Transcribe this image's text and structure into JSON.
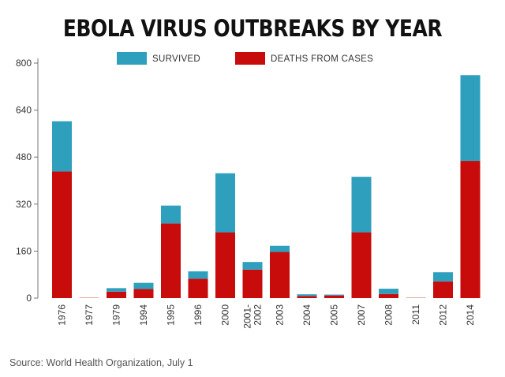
{
  "page": {
    "title": "EBOLA VIRUS OUTBREAKS BY YEAR",
    "source": "Source: World Health Organization, July 1"
  },
  "colors": {
    "survived": "#2e9fbd",
    "deaths": "#c80b0b",
    "axis": "#777777"
  },
  "chart_data": {
    "type": "bar",
    "stacked": true,
    "title": "EBOLA VIRUS OUTBREAKS BY YEAR",
    "xlabel": "",
    "ylabel": "",
    "ylim": [
      0,
      800
    ],
    "yticks": [
      0,
      160,
      320,
      480,
      640,
      800
    ],
    "grid": false,
    "legend": "top-center",
    "categories": [
      "1976",
      "1977",
      "1979",
      "1994",
      "1995",
      "1996",
      "2000",
      "2001-\n2002",
      "2003",
      "2004",
      "2005",
      "2007",
      "2008",
      "2011",
      "2012",
      "2014"
    ],
    "series": [
      {
        "name": "DEATHS FROM CASES",
        "values": [
          431,
          1,
          22,
          31,
          254,
          66,
          224,
          97,
          157,
          7,
          9,
          224,
          14,
          1,
          57,
          467
        ]
      },
      {
        "name": "SURVIVED",
        "values": [
          171,
          0,
          12,
          21,
          61,
          25,
          201,
          26,
          21,
          6,
          3,
          189,
          18,
          0,
          31,
          292
        ]
      }
    ]
  }
}
